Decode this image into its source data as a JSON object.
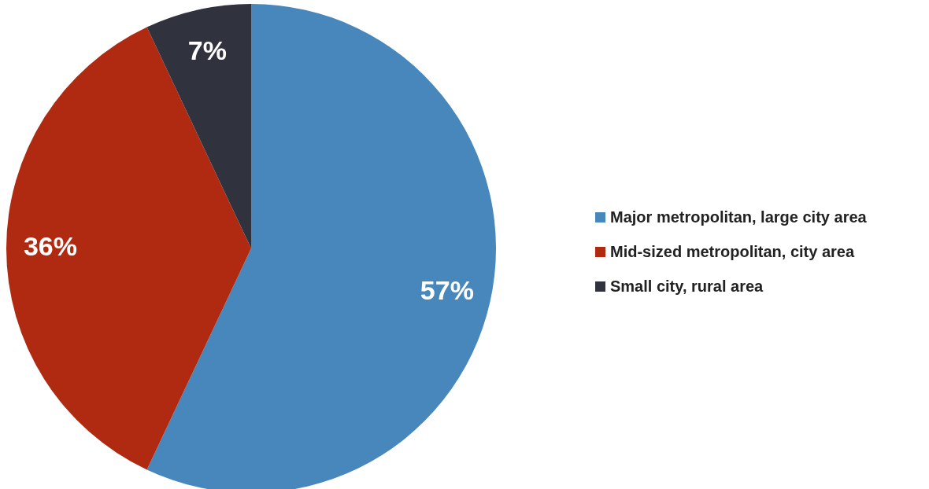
{
  "chart_data": {
    "type": "pie",
    "categories": [
      "Major metropolitan, large city area",
      "Mid-sized metropolitan, city area",
      "Small city, rural area"
    ],
    "values": [
      57,
      36,
      7
    ],
    "colors": [
      "#4787bb",
      "#b02a12",
      "#30333d"
    ],
    "value_labels": [
      "57%",
      "36%",
      "7%"
    ],
    "legend": "right"
  }
}
